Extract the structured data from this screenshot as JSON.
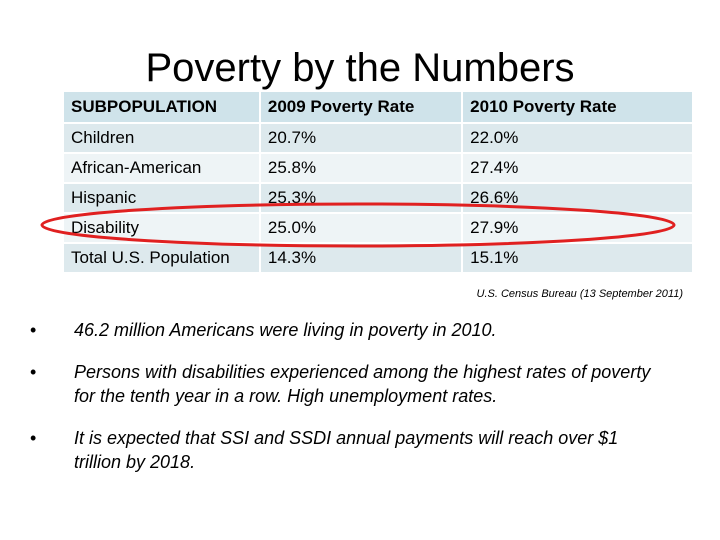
{
  "slide": {
    "title": "Poverty by the Numbers",
    "source": "U.S. Census Bureau (13 September 2011)"
  },
  "table": {
    "headers": [
      "SUBPOPULATION",
      "2009 Poverty Rate",
      "2010 Poverty Rate"
    ],
    "rows": [
      [
        "Children",
        "20.7%",
        "22.0%"
      ],
      [
        "African-American",
        "25.8%",
        "27.4%"
      ],
      [
        "Hispanic",
        "25.3%",
        "26.6%"
      ],
      [
        "Disability",
        "25.0%",
        "27.9%"
      ],
      [
        "Total U.S. Population",
        "14.3%",
        "15.1%"
      ]
    ],
    "highlighted_row": "Disability",
    "highlight_color": "#e02020"
  },
  "bullets": [
    "46.2 million Americans were living in poverty in 2010.",
    "Persons with disabilities experienced among the highest rates of poverty for the tenth year in a row. High unemployment rates.",
    "It is expected that SSI and SSDI annual payments will reach over $1 trillion by 2018."
  ]
}
